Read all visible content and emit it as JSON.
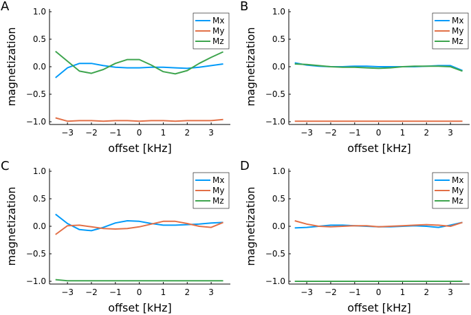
{
  "chart_data": [
    {
      "type": "line",
      "panel": "A",
      "xlabel": "offset [kHz]",
      "ylabel": "magnetization",
      "legend": "top-right",
      "xlim": [
        -3.75,
        3.8
      ],
      "ylim": [
        -1.05,
        1.05
      ],
      "xticks": [
        {
          "value": -3,
          "label": "−3"
        },
        {
          "value": -2,
          "label": "−2"
        },
        {
          "value": -1,
          "label": "−1"
        },
        0,
        1,
        2,
        3
      ],
      "yticks": [
        {
          "value": 1,
          "label": "1.0"
        },
        {
          "value": 0.5,
          "label": "0.5"
        },
        {
          "value": 0,
          "label": "0.0"
        },
        {
          "value": -0.5,
          "label": "−0.5"
        },
        {
          "value": -1,
          "label": "−1.0"
        }
      ],
      "x": [
        -3.5,
        -3,
        -2.5,
        -2,
        -1.5,
        -1,
        -0.5,
        0,
        0.5,
        1,
        1.5,
        2,
        2.5,
        3,
        3.5
      ],
      "series": [
        {
          "name": "Mx",
          "color": "#009af9",
          "values": [
            -0.2,
            -0.02,
            0.06,
            0.06,
            0.02,
            -0.01,
            -0.02,
            -0.02,
            -0.01,
            -0.01,
            -0.02,
            -0.03,
            -0.01,
            0.02,
            0.05
          ]
        },
        {
          "name": "My",
          "color": "#e26f46",
          "values": [
            -0.93,
            -0.99,
            -0.98,
            -0.98,
            -0.99,
            -0.98,
            -0.98,
            -0.99,
            -0.98,
            -0.98,
            -0.99,
            -0.98,
            -0.98,
            -0.98,
            -0.96
          ]
        },
        {
          "name": "Mz",
          "color": "#3da44d",
          "values": [
            0.28,
            0.1,
            -0.08,
            -0.12,
            -0.05,
            0.06,
            0.13,
            0.13,
            0.03,
            -0.09,
            -0.13,
            -0.07,
            0.06,
            0.17,
            0.27
          ]
        }
      ]
    },
    {
      "type": "line",
      "panel": "B",
      "xlabel": "offset [kHz]",
      "ylabel": "magnetization",
      "legend": "top-right",
      "xlim": [
        -3.75,
        3.8
      ],
      "ylim": [
        -1.05,
        1.05
      ],
      "xticks": [
        {
          "value": -3,
          "label": "−3"
        },
        {
          "value": -2,
          "label": "−2"
        },
        {
          "value": -1,
          "label": "−1"
        },
        0,
        1,
        2,
        3
      ],
      "yticks": [
        {
          "value": 1,
          "label": "1.0"
        },
        {
          "value": 0.5,
          "label": "0.5"
        },
        {
          "value": 0,
          "label": "0.0"
        },
        {
          "value": -0.5,
          "label": "−0.5"
        },
        {
          "value": -1,
          "label": "−1.0"
        }
      ],
      "x": [
        -3.5,
        -3,
        -2.5,
        -2,
        -1.5,
        -1,
        -0.5,
        0,
        0.5,
        1,
        1.5,
        2,
        2.5,
        3,
        3.5
      ],
      "series": [
        {
          "name": "Mx",
          "color": "#009af9",
          "values": [
            0.07,
            0.03,
            0.01,
            0.0,
            0.0,
            0.01,
            0.01,
            0.0,
            0.0,
            0.0,
            0.0,
            0.01,
            0.02,
            0.02,
            -0.07
          ]
        },
        {
          "name": "My",
          "color": "#e26f46",
          "values": [
            -0.99,
            -0.99,
            -0.99,
            -0.99,
            -0.99,
            -0.99,
            -0.99,
            -0.99,
            -0.99,
            -0.99,
            -0.99,
            -0.99,
            -0.99,
            -0.99,
            -0.99
          ]
        },
        {
          "name": "Mz",
          "color": "#3da44d",
          "values": [
            0.05,
            0.04,
            0.02,
            0.0,
            -0.01,
            -0.01,
            -0.02,
            -0.03,
            -0.02,
            0.0,
            0.01,
            0.01,
            0.01,
            0.0,
            -0.08
          ]
        }
      ]
    },
    {
      "type": "line",
      "panel": "C",
      "xlabel": "offset [kHz]",
      "ylabel": "magnetization",
      "legend": "top-right",
      "xlim": [
        -3.75,
        3.8
      ],
      "ylim": [
        -1.05,
        1.05
      ],
      "xticks": [
        {
          "value": -3,
          "label": "−3"
        },
        {
          "value": -2,
          "label": "−2"
        },
        {
          "value": -1,
          "label": "−1"
        },
        0,
        1,
        2,
        3
      ],
      "yticks": [
        {
          "value": 1,
          "label": "1.0"
        },
        {
          "value": 0.5,
          "label": "0.5"
        },
        {
          "value": 0,
          "label": "0.0"
        },
        {
          "value": -0.5,
          "label": "−0.5"
        },
        {
          "value": -1,
          "label": "−1.0"
        }
      ],
      "x": [
        -3.5,
        -3,
        -2.5,
        -2,
        -1.5,
        -1,
        -0.5,
        0,
        0.5,
        1,
        1.5,
        2,
        2.5,
        3,
        3.5
      ],
      "series": [
        {
          "name": "Mx",
          "color": "#009af9",
          "values": [
            0.22,
            0.05,
            -0.06,
            -0.08,
            -0.02,
            0.06,
            0.1,
            0.09,
            0.05,
            0.02,
            0.02,
            0.03,
            0.04,
            0.06,
            0.07
          ]
        },
        {
          "name": "My",
          "color": "#e26f46",
          "values": [
            -0.15,
            0.01,
            0.02,
            -0.01,
            -0.04,
            -0.05,
            -0.04,
            -0.01,
            0.04,
            0.09,
            0.09,
            0.05,
            0.0,
            -0.02,
            0.07
          ]
        },
        {
          "name": "Mz",
          "color": "#3da44d",
          "values": [
            -0.97,
            -0.99,
            -0.99,
            -0.99,
            -0.99,
            -0.99,
            -0.99,
            -0.99,
            -0.99,
            -0.99,
            -0.99,
            -0.99,
            -0.99,
            -0.99,
            -0.99
          ]
        }
      ]
    },
    {
      "type": "line",
      "panel": "D",
      "xlabel": "offset [kHz]",
      "ylabel": "magnetization",
      "legend": "top-right",
      "xlim": [
        -3.75,
        3.8
      ],
      "ylim": [
        -1.05,
        1.05
      ],
      "xticks": [
        {
          "value": -3,
          "label": "−3"
        },
        {
          "value": -2,
          "label": "−2"
        },
        {
          "value": -1,
          "label": "−1"
        },
        0,
        1,
        2,
        3
      ],
      "yticks": [
        {
          "value": 1,
          "label": "1.0"
        },
        {
          "value": 0.5,
          "label": "0.5"
        },
        {
          "value": 0,
          "label": "0.0"
        },
        {
          "value": -0.5,
          "label": "−0.5"
        },
        {
          "value": -1,
          "label": "−1.0"
        }
      ],
      "x": [
        -3.5,
        -3,
        -2.5,
        -2,
        -1.5,
        -1,
        -0.5,
        0,
        0.5,
        1,
        1.5,
        2,
        2.5,
        3,
        3.5
      ],
      "series": [
        {
          "name": "Mx",
          "color": "#009af9",
          "values": [
            -0.03,
            -0.02,
            0.0,
            0.02,
            0.02,
            0.01,
            0.0,
            -0.01,
            -0.01,
            0.0,
            0.01,
            0.0,
            -0.02,
            0.02,
            0.07
          ]
        },
        {
          "name": "My",
          "color": "#e26f46",
          "values": [
            0.1,
            0.04,
            0.0,
            -0.01,
            0.0,
            0.01,
            0.01,
            -0.01,
            0.0,
            0.01,
            0.02,
            0.03,
            0.02,
            0.0,
            0.07
          ]
        },
        {
          "name": "Mz",
          "color": "#3da44d",
          "values": [
            -1.0,
            -1.0,
            -1.0,
            -1.0,
            -1.0,
            -1.0,
            -1.0,
            -1.0,
            -1.0,
            -1.0,
            -1.0,
            -1.0,
            -1.0,
            -1.0,
            -1.0
          ]
        }
      ]
    }
  ]
}
